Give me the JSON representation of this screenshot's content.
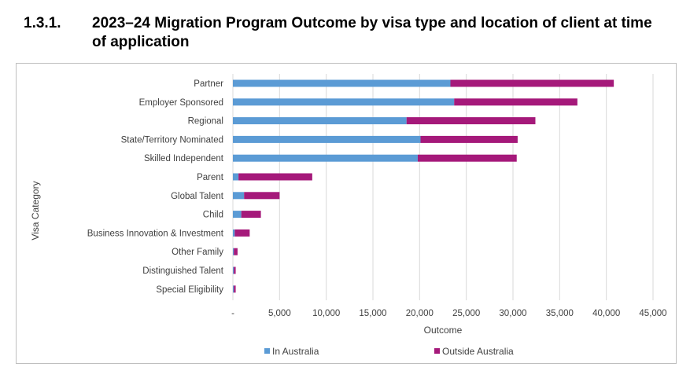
{
  "heading": {
    "number": "1.3.1.",
    "title": "2023–24 Migration Program Outcome by visa type and location of client at time of application"
  },
  "chart_data": {
    "type": "bar",
    "orientation": "horizontal",
    "stacked": true,
    "categories": [
      "Partner",
      "Employer Sponsored",
      "Regional",
      "State/Territory Nominated",
      "Skilled Independent",
      "Parent",
      "Global Talent",
      "Child",
      "Business Innovation & Investment",
      "Other Family",
      "Distinguished Talent",
      "Special Eligibility"
    ],
    "series": [
      {
        "name": "In Australia",
        "color": "#5b9bd5",
        "values": [
          23300,
          23700,
          18600,
          20100,
          19800,
          600,
          1200,
          900,
          200,
          100,
          100,
          100
        ]
      },
      {
        "name": "Outside Australia",
        "color": "#a5197a",
        "values": [
          17500,
          13200,
          13800,
          10400,
          10600,
          7900,
          3800,
          2100,
          1600,
          400,
          200,
          200
        ]
      }
    ],
    "xticks": [
      "-",
      "5,000",
      "10,000",
      "15,000",
      "20,000",
      "25,000",
      "30,000",
      "35,000",
      "40,000",
      "45,000"
    ],
    "xlim": [
      0,
      45000
    ],
    "xlabel": "Outcome",
    "ylabel": "Visa Category",
    "grid": "vertical",
    "legend": "bottom"
  }
}
